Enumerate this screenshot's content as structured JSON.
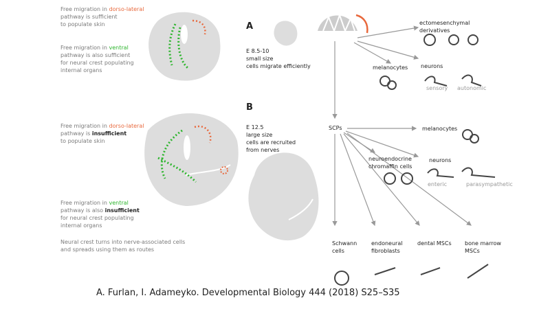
{
  "panel_a": {
    "label": "A",
    "notes": [
      {
        "lines": [
          [
            {
              "text": "Free migration in "
            },
            {
              "text": "dorso-lateral",
              "color": "#e8683c"
            }
          ],
          [
            {
              "text": "pathway is sufficient"
            }
          ],
          [
            {
              "text": "to populate skin"
            }
          ]
        ]
      },
      {
        "lines": [
          [
            {
              "text": "Free migration in "
            },
            {
              "text": "ventral",
              "color": "#2db52d"
            }
          ],
          [
            {
              "text": "pathway is also sufficient"
            }
          ],
          [
            {
              "text": "for neural crest populating"
            }
          ],
          [
            {
              "text": "internal organs"
            }
          ]
        ]
      }
    ],
    "stage": [
      "E 8.5-10",
      "small size",
      "cells migrate efficiently"
    ]
  },
  "panel_b": {
    "label": "B",
    "notes": [
      {
        "lines": [
          [
            {
              "text": "Free migration in "
            },
            {
              "text": "dorso-lateral",
              "color": "#e8683c"
            }
          ],
          [
            {
              "text": "pathway is "
            },
            {
              "text": "insufficient",
              "bold": true
            }
          ],
          [
            {
              "text": "to populate skin"
            }
          ]
        ]
      },
      {
        "lines": [
          [
            {
              "text": "Free migration in "
            },
            {
              "text": "ventral",
              "color": "#2db52d"
            }
          ],
          [
            {
              "text": "pathway is also "
            },
            {
              "text": "insufficient",
              "bold": true
            }
          ],
          [
            {
              "text": "for neural crest populating"
            }
          ],
          [
            {
              "text": "internal organs"
            }
          ]
        ]
      },
      {
        "lines": [
          [
            {
              "text": "Neural crest turns into nerve-associated cells"
            }
          ],
          [
            {
              "text": "and spreads using them as routes"
            }
          ]
        ]
      }
    ],
    "stage": [
      "E 12.5",
      "large size",
      "cells are recruited",
      "from nerves"
    ]
  },
  "lineage": {
    "top": {
      "ectomesenchymal": [
        "ectomesenchymal",
        "derivatives"
      ],
      "melanocytes": "melanocytes",
      "neurons": "neurons",
      "sensory": "sensory",
      "autonomic": "autonomic"
    },
    "scps": {
      "label": "SCPs",
      "melanocytes": "melanocytes",
      "neuroendocrine": [
        "neuroendocrine",
        "chromaffin cells"
      ],
      "neurons": "neurons",
      "enteric": "enteric",
      "parasympathetic": "parasympathetic",
      "schwann": [
        "Schwann",
        "cells"
      ],
      "endoneural": [
        "endoneural",
        "fibroblasts"
      ],
      "dental": "dental MSCs",
      "bone_marrow": [
        "bone marrow",
        "MSCs"
      ]
    }
  },
  "citation": "A. Furlan, I. Adameyko.   Developmental Biology 444 (2018) S25–S35"
}
